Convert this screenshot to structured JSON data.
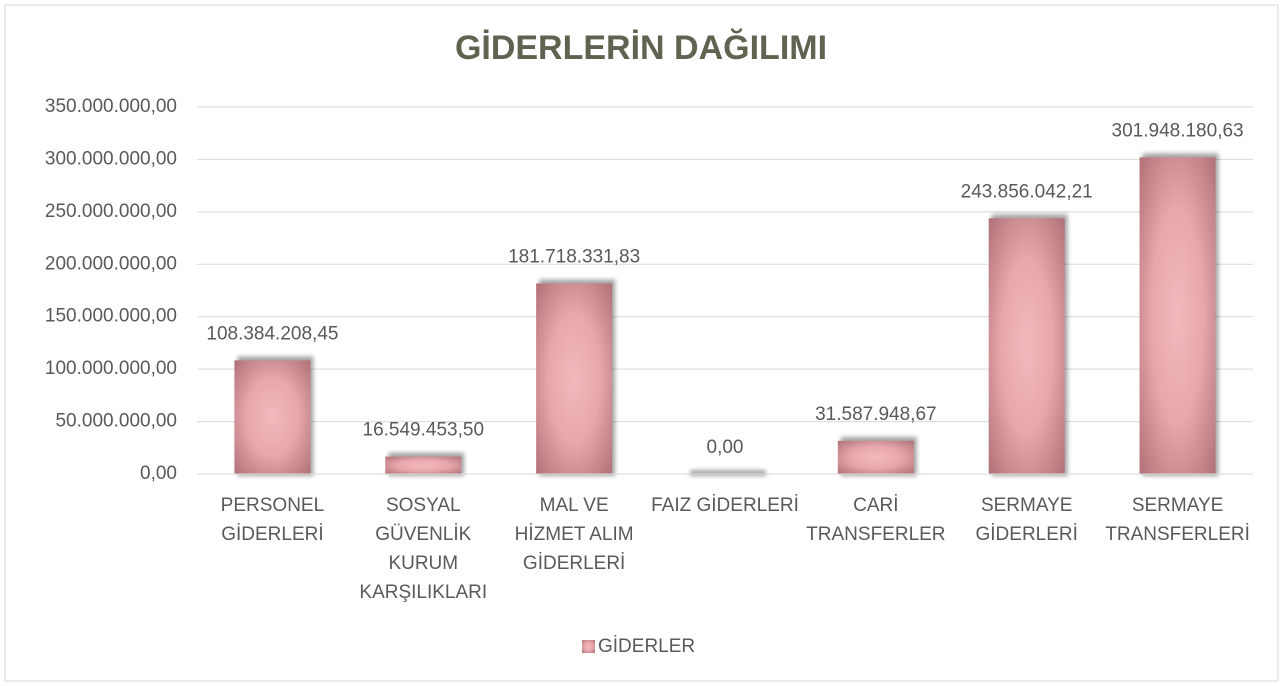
{
  "chart_data": {
    "type": "bar",
    "title": "GİDERLERİN DAĞILIMI",
    "categories": [
      [
        "PERSONEL",
        "GİDERLERİ"
      ],
      [
        "SOSYAL",
        "GÜVENLİK",
        "KURUM",
        "KARŞILIKLARI"
      ],
      [
        "MAL VE",
        "HİZMET ALIM",
        "GİDERLERİ"
      ],
      [
        "FAIZ GİDERLERİ"
      ],
      [
        "CARİ",
        "TRANSFERLER"
      ],
      [
        "SERMAYE",
        "GİDERLERİ"
      ],
      [
        "SERMAYE",
        "TRANSFERLERİ"
      ]
    ],
    "series": [
      {
        "name": "GİDERLER",
        "color": "#f2b9bd",
        "values": [
          108384208.45,
          16549453.5,
          181718331.83,
          0,
          31587948.67,
          243856042.21,
          301948180.63
        ],
        "value_labels": [
          "108.384.208,45",
          "16.549.453,50",
          "181.718.331,83",
          "0,00",
          "31.587.948,67",
          "243.856.042,21",
          "301.948.180,63"
        ]
      }
    ],
    "ylim": [
      0,
      350000000
    ],
    "yticks": [
      {
        "value": 0,
        "label": "0,00"
      },
      {
        "value": 50000000,
        "label": "50.000.000,00"
      },
      {
        "value": 100000000,
        "label": "100.000.000,00"
      },
      {
        "value": 150000000,
        "label": "150.000.000,00"
      },
      {
        "value": 200000000,
        "label": "200.000.000,00"
      },
      {
        "value": 250000000,
        "label": "250.000.000,00"
      },
      {
        "value": 300000000,
        "label": "300.000.000,00"
      },
      {
        "value": 350000000,
        "label": "350.000.000,00"
      }
    ],
    "grid": true,
    "legend": "bottom"
  }
}
